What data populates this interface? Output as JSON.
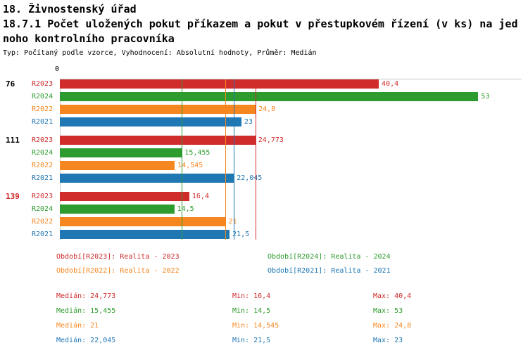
{
  "header": {
    "title": "18. Živnostenský úřad",
    "subtitle_line1": "18.7.1 Počet uložených pokut příkazem a pokut v přestupkovém řízení (v ks) na jed",
    "subtitle_line2": "noho kontrolního pracovníka",
    "meta": "Typ: Počítaný podle vzorce, Vyhodnocení: Absolutní hodnoty, Průměr: Medián"
  },
  "chart_data": {
    "type": "bar",
    "orientation": "horizontal",
    "axis": {
      "zero_label": "0",
      "xlim": [
        0,
        58.5
      ],
      "grid": false
    },
    "series_order": [
      "R2023",
      "R2024",
      "R2022",
      "R2021"
    ],
    "series_colors": {
      "R2023": "#d02c2c",
      "R2024": "#2e9b2e",
      "R2022": "#f6861f",
      "R2021": "#1f77b4"
    },
    "groups": [
      {
        "label": "76",
        "label_color": "#000000",
        "bars": [
          {
            "series": "R2023",
            "value": 40.4,
            "display": "40,4"
          },
          {
            "series": "R2024",
            "value": 53,
            "display": "53"
          },
          {
            "series": "R2022",
            "value": 24.8,
            "display": "24,8"
          },
          {
            "series": "R2021",
            "value": 23,
            "display": "23"
          }
        ]
      },
      {
        "label": "111",
        "label_color": "#000000",
        "bars": [
          {
            "series": "R2023",
            "value": 24.773,
            "display": "24,773"
          },
          {
            "series": "R2024",
            "value": 15.455,
            "display": "15,455"
          },
          {
            "series": "R2022",
            "value": 14.545,
            "display": "14,545"
          },
          {
            "series": "R2021",
            "value": 22.045,
            "display": "22,045"
          }
        ]
      },
      {
        "label": "139",
        "label_color": "#d02c2c",
        "bars": [
          {
            "series": "R2023",
            "value": 16.4,
            "display": "16,4"
          },
          {
            "series": "R2024",
            "value": 14.5,
            "display": "14,5"
          },
          {
            "series": "R2022",
            "value": 21,
            "display": "21"
          },
          {
            "series": "R2021",
            "value": 21.5,
            "display": "21,5"
          }
        ]
      }
    ],
    "median_lines": [
      {
        "series": "R2024",
        "value": 15.455
      },
      {
        "series": "R2022",
        "value": 21
      },
      {
        "series": "R2021",
        "value": 22.045
      },
      {
        "series": "R2023",
        "value": 24.773
      }
    ]
  },
  "legend": [
    {
      "series": "R2023",
      "text": "Období[R2023]: Realita - 2023"
    },
    {
      "series": "R2024",
      "text": "Období[R2024]: Realita - 2024"
    },
    {
      "series": "R2022",
      "text": "Období[R2022]: Realita - 2022"
    },
    {
      "series": "R2021",
      "text": "Období[R2021]: Realita - 2021"
    }
  ],
  "stats": [
    {
      "series": "R2023",
      "cells": [
        "Medián: 24,773",
        "Min: 16,4",
        "Max: 40,4"
      ]
    },
    {
      "series": "R2024",
      "cells": [
        "Medián: 15,455",
        "Min: 14,5",
        "Max: 53"
      ]
    },
    {
      "series": "R2022",
      "cells": [
        "Medián: 21",
        "Min: 14,545",
        "Max: 24,8"
      ]
    },
    {
      "series": "R2021",
      "cells": [
        "Medián: 22,045",
        "Min: 21,5",
        "Max: 23"
      ]
    }
  ]
}
